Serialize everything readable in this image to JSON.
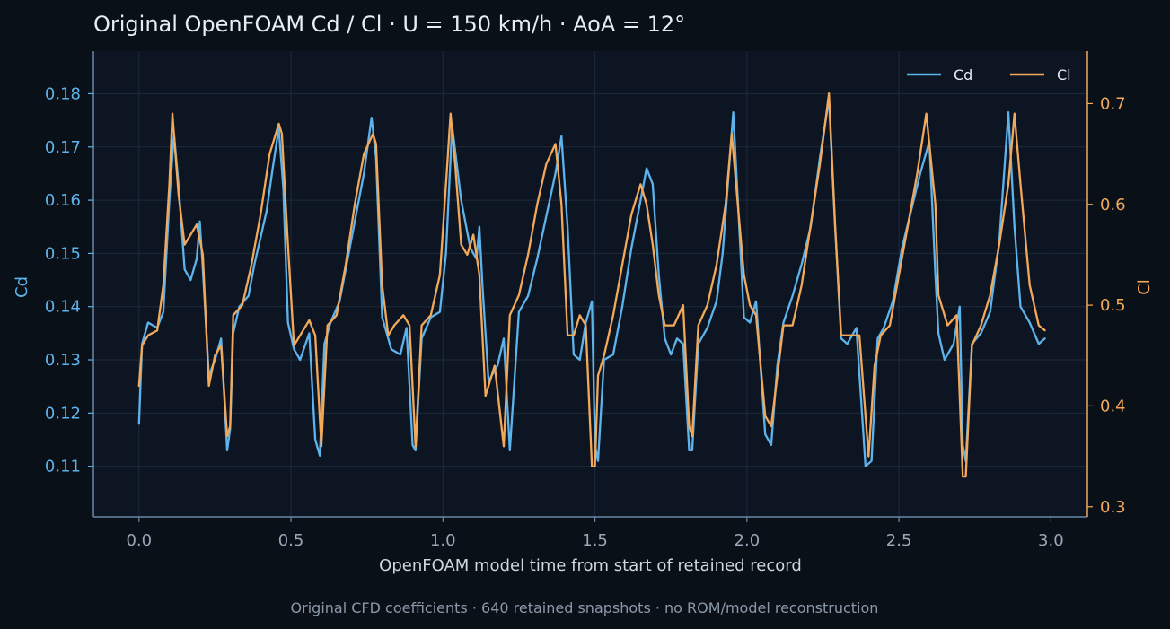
{
  "chart_data": {
    "type": "line",
    "title": "Original OpenFOAM Cd / Cl · U = 150 km/h · AoA = 12°",
    "xlabel": "OpenFOAM model time from start of retained record",
    "ylabel": "Cd",
    "y2label": "Cl",
    "caption": "Original CFD coefficients · 640 retained snapshots · no ROM/model reconstruction",
    "xlim": [
      -0.15,
      3.12
    ],
    "ylim": [
      0.1005,
      0.188
    ],
    "y2lim": [
      0.29,
      0.752
    ],
    "x_ticks": [
      0.0,
      0.5,
      1.0,
      1.5,
      2.0,
      2.5,
      3.0
    ],
    "x_tick_labels": [
      "0.0",
      "0.5",
      "1.0",
      "1.5",
      "2.0",
      "2.5",
      "3.0"
    ],
    "y_ticks": [
      0.11,
      0.12,
      0.13,
      0.14,
      0.15,
      0.16,
      0.17,
      0.18
    ],
    "y_tick_labels": [
      "0.11",
      "0.12",
      "0.13",
      "0.14",
      "0.15",
      "0.16",
      "0.17",
      "0.18"
    ],
    "y2_ticks": [
      0.3,
      0.4,
      0.5,
      0.6,
      0.7
    ],
    "y2_tick_labels": [
      "0.3",
      "0.4",
      "0.5",
      "0.6",
      "0.7"
    ],
    "grid": true,
    "legend": "top-right",
    "series": [
      {
        "name": "Cd",
        "axis": "left",
        "color": "#5db4ec",
        "x": [
          0.0,
          0.01,
          0.03,
          0.06,
          0.08,
          0.1,
          0.115,
          0.13,
          0.15,
          0.17,
          0.19,
          0.2,
          0.21,
          0.23,
          0.25,
          0.27,
          0.29,
          0.3,
          0.31,
          0.33,
          0.36,
          0.38,
          0.4,
          0.42,
          0.44,
          0.46,
          0.475,
          0.49,
          0.51,
          0.53,
          0.56,
          0.58,
          0.595,
          0.61,
          0.63,
          0.66,
          0.69,
          0.72,
          0.74,
          0.765,
          0.78,
          0.8,
          0.83,
          0.86,
          0.88,
          0.9,
          0.91,
          0.93,
          0.96,
          0.99,
          1.01,
          1.03,
          1.06,
          1.09,
          1.11,
          1.12,
          1.13,
          1.15,
          1.18,
          1.2,
          1.22,
          1.25,
          1.28,
          1.31,
          1.34,
          1.37,
          1.39,
          1.41,
          1.43,
          1.45,
          1.47,
          1.49,
          1.5,
          1.51,
          1.53,
          1.56,
          1.59,
          1.62,
          1.65,
          1.67,
          1.69,
          1.71,
          1.73,
          1.75,
          1.77,
          1.79,
          1.81,
          1.82,
          1.84,
          1.87,
          1.9,
          1.92,
          1.94,
          1.955,
          1.97,
          1.99,
          2.01,
          2.03,
          2.06,
          2.08,
          2.1,
          2.12,
          2.15,
          2.18,
          2.21,
          2.24,
          2.27,
          2.29,
          2.31,
          2.33,
          2.36,
          2.39,
          2.41,
          2.43,
          2.45,
          2.48,
          2.51,
          2.54,
          2.57,
          2.6,
          2.62,
          2.63,
          2.65,
          2.68,
          2.7,
          2.71,
          2.72,
          2.74,
          2.77,
          2.8,
          2.83,
          2.86,
          2.88,
          2.9,
          2.93,
          2.96,
          2.98
        ],
        "y": [
          0.118,
          0.133,
          0.137,
          0.136,
          0.139,
          0.16,
          0.1725,
          0.163,
          0.147,
          0.145,
          0.149,
          0.156,
          0.147,
          0.127,
          0.13,
          0.134,
          0.113,
          0.117,
          0.135,
          0.14,
          0.142,
          0.148,
          0.153,
          0.158,
          0.166,
          0.1735,
          0.162,
          0.137,
          0.132,
          0.13,
          0.135,
          0.115,
          0.112,
          0.133,
          0.137,
          0.141,
          0.15,
          0.159,
          0.165,
          0.1755,
          0.168,
          0.138,
          0.132,
          0.131,
          0.136,
          0.114,
          0.113,
          0.134,
          0.138,
          0.139,
          0.15,
          0.174,
          0.16,
          0.151,
          0.149,
          0.155,
          0.144,
          0.126,
          0.129,
          0.134,
          0.113,
          0.139,
          0.142,
          0.149,
          0.157,
          0.165,
          0.172,
          0.155,
          0.131,
          0.13,
          0.137,
          0.141,
          0.114,
          0.111,
          0.13,
          0.131,
          0.14,
          0.151,
          0.16,
          0.166,
          0.163,
          0.146,
          0.134,
          0.131,
          0.134,
          0.133,
          0.113,
          0.113,
          0.133,
          0.136,
          0.141,
          0.15,
          0.165,
          0.1765,
          0.16,
          0.138,
          0.137,
          0.141,
          0.116,
          0.114,
          0.129,
          0.137,
          0.142,
          0.148,
          0.155,
          0.168,
          0.179,
          0.155,
          0.134,
          0.133,
          0.136,
          0.11,
          0.111,
          0.134,
          0.136,
          0.141,
          0.151,
          0.158,
          0.165,
          0.171,
          0.146,
          0.135,
          0.13,
          0.133,
          0.14,
          0.114,
          0.111,
          0.133,
          0.135,
          0.139,
          0.152,
          0.1765,
          0.155,
          0.14,
          0.137,
          0.133,
          0.134
        ]
      },
      {
        "name": "Cl",
        "axis": "right",
        "color": "#f2a95a",
        "x": [
          0.0,
          0.01,
          0.03,
          0.06,
          0.08,
          0.1,
          0.11,
          0.13,
          0.15,
          0.17,
          0.19,
          0.21,
          0.23,
          0.25,
          0.27,
          0.29,
          0.3,
          0.31,
          0.34,
          0.37,
          0.4,
          0.43,
          0.46,
          0.47,
          0.49,
          0.51,
          0.53,
          0.56,
          0.58,
          0.6,
          0.62,
          0.65,
          0.68,
          0.71,
          0.74,
          0.77,
          0.78,
          0.8,
          0.82,
          0.84,
          0.87,
          0.89,
          0.91,
          0.93,
          0.96,
          0.99,
          1.01,
          1.025,
          1.04,
          1.06,
          1.08,
          1.1,
          1.12,
          1.14,
          1.17,
          1.2,
          1.22,
          1.25,
          1.28,
          1.31,
          1.34,
          1.37,
          1.39,
          1.41,
          1.43,
          1.45,
          1.47,
          1.49,
          1.5,
          1.51,
          1.53,
          1.56,
          1.59,
          1.62,
          1.65,
          1.67,
          1.69,
          1.71,
          1.73,
          1.76,
          1.79,
          1.81,
          1.82,
          1.84,
          1.87,
          1.9,
          1.93,
          1.95,
          1.97,
          1.99,
          2.01,
          2.03,
          2.06,
          2.08,
          2.1,
          2.12,
          2.15,
          2.18,
          2.21,
          2.24,
          2.27,
          2.29,
          2.31,
          2.34,
          2.37,
          2.4,
          2.42,
          2.44,
          2.47,
          2.5,
          2.53,
          2.56,
          2.59,
          2.62,
          2.63,
          2.66,
          2.69,
          2.71,
          2.72,
          2.74,
          2.77,
          2.8,
          2.83,
          2.86,
          2.88,
          2.9,
          2.93,
          2.96,
          2.98
        ],
        "y": [
          0.42,
          0.46,
          0.47,
          0.475,
          0.52,
          0.62,
          0.69,
          0.61,
          0.56,
          0.57,
          0.58,
          0.55,
          0.42,
          0.45,
          0.46,
          0.37,
          0.38,
          0.49,
          0.5,
          0.54,
          0.59,
          0.65,
          0.68,
          0.67,
          0.56,
          0.46,
          0.47,
          0.485,
          0.47,
          0.36,
          0.48,
          0.49,
          0.54,
          0.6,
          0.65,
          0.67,
          0.66,
          0.52,
          0.47,
          0.48,
          0.49,
          0.48,
          0.36,
          0.48,
          0.49,
          0.53,
          0.62,
          0.69,
          0.64,
          0.56,
          0.55,
          0.57,
          0.53,
          0.41,
          0.44,
          0.36,
          0.49,
          0.51,
          0.55,
          0.6,
          0.64,
          0.66,
          0.6,
          0.47,
          0.47,
          0.49,
          0.48,
          0.34,
          0.34,
          0.43,
          0.45,
          0.49,
          0.54,
          0.59,
          0.62,
          0.6,
          0.56,
          0.51,
          0.48,
          0.48,
          0.5,
          0.38,
          0.37,
          0.48,
          0.5,
          0.54,
          0.6,
          0.67,
          0.6,
          0.53,
          0.5,
          0.49,
          0.39,
          0.38,
          0.43,
          0.48,
          0.48,
          0.52,
          0.58,
          0.64,
          0.71,
          0.58,
          0.47,
          0.47,
          0.47,
          0.35,
          0.44,
          0.47,
          0.48,
          0.53,
          0.58,
          0.63,
          0.69,
          0.6,
          0.51,
          0.48,
          0.49,
          0.33,
          0.33,
          0.46,
          0.48,
          0.51,
          0.56,
          0.62,
          0.69,
          0.62,
          0.52,
          0.48,
          0.475
        ]
      }
    ]
  }
}
